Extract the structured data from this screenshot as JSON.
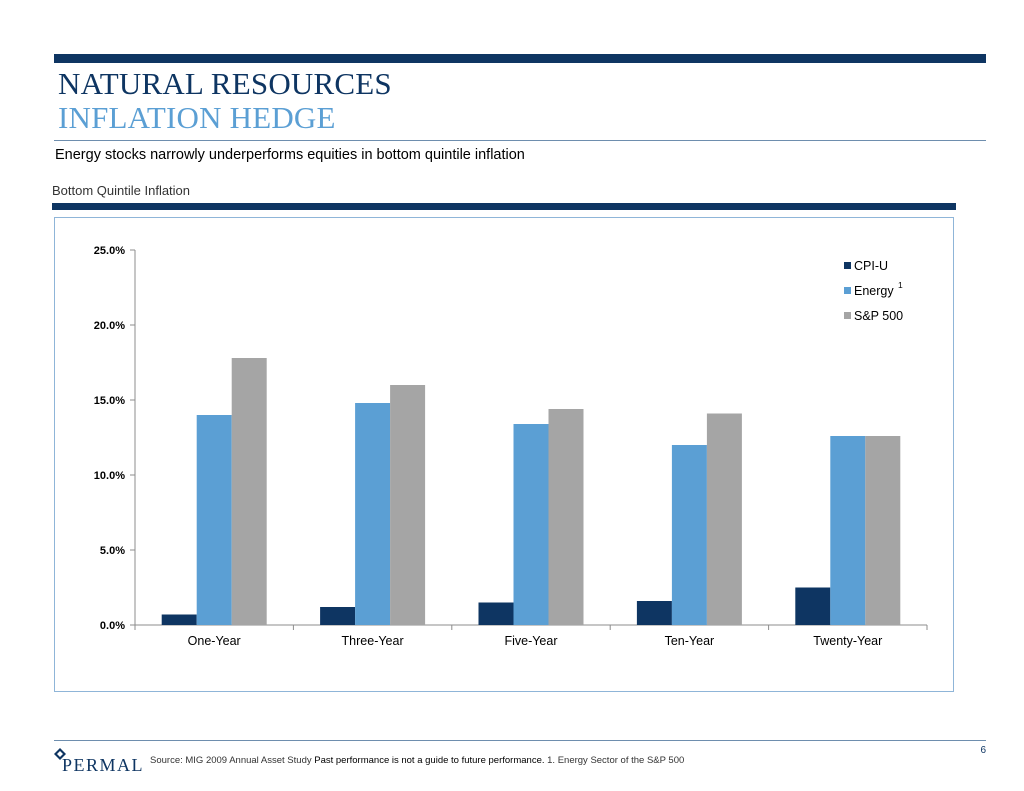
{
  "header": {
    "title_line1": "NATURAL RESOURCES",
    "title_line2": "INFLATION HEDGE",
    "subtitle": "Energy stocks narrowly underperforms equities in bottom quintile inflation"
  },
  "chart_section_label": "Bottom Quintile Inflation",
  "chart_data": {
    "type": "bar",
    "categories": [
      "One-Year",
      "Three-Year",
      "Five-Year",
      "Ten-Year",
      "Twenty-Year"
    ],
    "series": [
      {
        "name": "CPI-U",
        "values": [
          0.7,
          1.2,
          1.5,
          1.6,
          2.5
        ],
        "color": "#0e3562"
      },
      {
        "name": "Energy",
        "superscript": "1",
        "values": [
          14.0,
          14.8,
          13.4,
          12.0,
          12.6
        ],
        "color": "#5b9fd4"
      },
      {
        "name": "S&P 500",
        "values": [
          17.8,
          16.0,
          14.4,
          14.1,
          12.6
        ],
        "color": "#a5a5a5"
      }
    ],
    "ylim": [
      0,
      25
    ],
    "yticks": [
      "0.0%",
      "5.0%",
      "10.0%",
      "15.0%",
      "20.0%",
      "25.0%"
    ],
    "ytick_values": [
      0,
      5,
      10,
      15,
      20,
      25
    ],
    "grid": false,
    "legend_position": "top-right"
  },
  "footer": {
    "page_number": "6",
    "logo_text": "PERMAL",
    "source_prefix": "Source: MIG 2009 Annual Asset Study ",
    "disclaimer": "Past performance is not a guide to future performance.",
    "footnote": " 1.  Energy Sector of the S&P 500"
  }
}
